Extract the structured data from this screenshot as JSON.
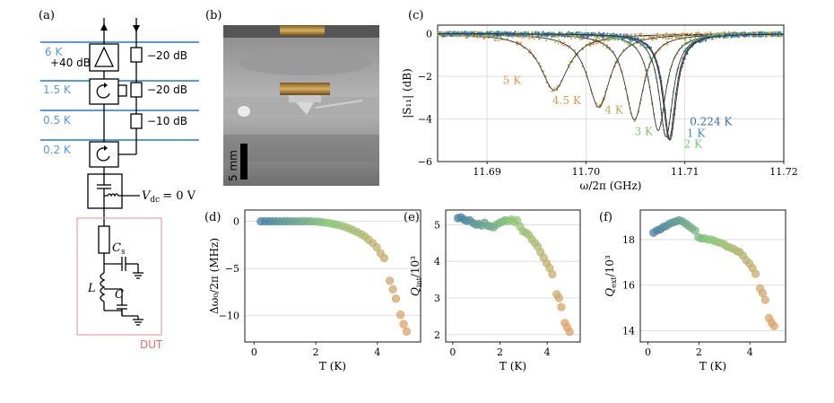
{
  "colors": {
    "blue_line": "#5b9bd5",
    "dut_box": "#e8a0a0",
    "dut_label": "#e07070",
    "gauge_low": "#3f78a8",
    "gauge_mid": "#8cc878",
    "gauge_high": "#e0a26a"
  },
  "panel_a": {
    "label": "(a)",
    "stages": [
      "6 K",
      "1.5 K",
      "0.5 K",
      "0.2 K"
    ],
    "amp_gain": "+40 dB",
    "attenuators": [
      "−20 dB",
      "−20 dB",
      "−10 dB"
    ],
    "vdc_label": "V",
    "vdc_sub": "dc",
    "vdc_value": "= 0 V",
    "cs_label": "C",
    "cs_sub": "s",
    "l_label": "L",
    "c_label": "C",
    "dut_label": "DUT"
  },
  "panel_b": {
    "label": "(b)",
    "scale_bar": "5 mm"
  },
  "chart_data": [
    {
      "id": "c",
      "label": "(c)",
      "type": "scatter",
      "xlabel": "ω/2π (GHz)",
      "ylabel": "|S₁₁| (dB)",
      "xlim": [
        11.685,
        11.72
      ],
      "ylim": [
        -6,
        0.4
      ],
      "xticks": [
        "11.69",
        "11.70",
        "11.71",
        "11.72"
      ],
      "yticks": [
        "0",
        "−2",
        "−4",
        "−6"
      ],
      "series": [
        {
          "name": "5 K",
          "f0": 11.6968,
          "depth": -2.65,
          "width": 0.0034,
          "color": "#d9964f"
        },
        {
          "name": "4.5 K",
          "f0": 11.7013,
          "depth": -3.45,
          "width": 0.0028,
          "color": "#cda055"
        },
        {
          "name": "4 K",
          "f0": 11.7049,
          "depth": -4.05,
          "width": 0.0023,
          "color": "#b9a85c"
        },
        {
          "name": "3 K",
          "f0": 11.7073,
          "depth": -4.55,
          "width": 0.0019,
          "color": "#93bd6a"
        },
        {
          "name": "2 K",
          "f0": 11.7081,
          "depth": -4.85,
          "width": 0.0017,
          "color": "#7fc17f"
        },
        {
          "name": "1 K",
          "f0": 11.7084,
          "depth": -4.95,
          "width": 0.0016,
          "color": "#4d8bb8"
        },
        {
          "name": "0.224 K",
          "f0": 11.7085,
          "depth": -5.0,
          "width": 0.0016,
          "color": "#3a6f9e"
        }
      ]
    },
    {
      "id": "d",
      "label": "(d)",
      "type": "scatter",
      "xlabel": "T (K)",
      "ylabel": "Δω₀/2π (MHz)",
      "xlim": [
        -0.3,
        5.4
      ],
      "ylim": [
        -12.8,
        1.2
      ],
      "xticks": [
        "0",
        "2",
        "4"
      ],
      "yticks": [
        "0",
        "−5",
        "−10"
      ],
      "x": [
        0.22,
        0.35,
        0.48,
        0.6,
        0.72,
        0.85,
        0.98,
        1.1,
        1.22,
        1.35,
        1.48,
        1.6,
        1.72,
        1.85,
        1.98,
        2.1,
        2.22,
        2.35,
        2.48,
        2.6,
        2.72,
        2.85,
        2.98,
        3.1,
        3.22,
        3.35,
        3.48,
        3.6,
        3.72,
        3.85,
        3.98,
        4.1,
        4.22,
        4.4,
        4.5,
        4.6,
        4.75,
        4.85,
        4.95
      ],
      "y": [
        0,
        0,
        0,
        0,
        0,
        0,
        0,
        0,
        0,
        0,
        0,
        0,
        0,
        0,
        -0.02,
        -0.05,
        -0.1,
        -0.15,
        -0.22,
        -0.3,
        -0.38,
        -0.5,
        -0.62,
        -0.78,
        -0.95,
        -1.15,
        -1.38,
        -1.62,
        -1.95,
        -2.3,
        -2.75,
        -3.4,
        -3.9,
        -6.3,
        -7.2,
        -8.2,
        -9.9,
        -10.9,
        -11.7
      ]
    },
    {
      "id": "e",
      "label": "(e)",
      "type": "scatter",
      "xlabel": "T (K)",
      "ylabel": "Q_int/10³",
      "xlim": [
        -0.3,
        5.4
      ],
      "ylim": [
        1.8,
        5.4
      ],
      "xticks": [
        "0",
        "2",
        "4"
      ],
      "yticks": [
        "2",
        "3",
        "4",
        "5"
      ],
      "x": [
        0.22,
        0.35,
        0.48,
        0.6,
        0.72,
        0.85,
        0.98,
        1.1,
        1.22,
        1.35,
        1.48,
        1.6,
        1.72,
        1.85,
        1.98,
        2.1,
        2.22,
        2.35,
        2.48,
        2.6,
        2.72,
        2.85,
        2.98,
        3.1,
        3.22,
        3.35,
        3.48,
        3.6,
        3.72,
        3.85,
        3.98,
        4.1,
        4.22,
        4.4,
        4.5,
        4.6,
        4.75,
        4.85,
        4.95
      ],
      "y": [
        5.18,
        5.2,
        5.14,
        5.1,
        5.12,
        5.05,
        5.0,
        5.02,
        4.98,
        5.05,
        4.97,
        4.96,
        4.93,
        5.0,
        5.05,
        5.08,
        5.12,
        5.1,
        5.14,
        5.08,
        5.12,
        4.95,
        4.82,
        4.78,
        4.72,
        4.6,
        4.5,
        4.4,
        4.25,
        4.1,
        3.95,
        3.82,
        3.65,
        3.1,
        3.0,
        2.75,
        2.32,
        2.2,
        2.08
      ]
    },
    {
      "id": "f",
      "label": "(f)",
      "type": "scatter",
      "xlabel": "T (K)",
      "ylabel": "Q_ext/10³",
      "xlim": [
        -0.3,
        5.4
      ],
      "ylim": [
        13.5,
        19.3
      ],
      "xticks": [
        "0",
        "2",
        "4"
      ],
      "yticks": [
        "14",
        "16",
        "18"
      ],
      "x": [
        0.22,
        0.35,
        0.48,
        0.6,
        0.72,
        0.85,
        0.98,
        1.1,
        1.22,
        1.35,
        1.48,
        1.6,
        1.72,
        1.85,
        1.98,
        2.1,
        2.22,
        2.35,
        2.48,
        2.6,
        2.72,
        2.85,
        2.98,
        3.1,
        3.22,
        3.35,
        3.48,
        3.6,
        3.72,
        3.85,
        3.98,
        4.1,
        4.22,
        4.4,
        4.5,
        4.6,
        4.75,
        4.85,
        4.95
      ],
      "y": [
        18.3,
        18.4,
        18.45,
        18.55,
        18.6,
        18.7,
        18.75,
        18.8,
        18.85,
        18.8,
        18.7,
        18.6,
        18.5,
        18.4,
        18.1,
        18.05,
        18.05,
        18.0,
        18.0,
        17.95,
        17.9,
        17.85,
        17.8,
        17.7,
        17.65,
        17.6,
        17.5,
        17.45,
        17.3,
        17.1,
        16.95,
        16.75,
        16.5,
        15.85,
        15.65,
        15.35,
        14.55,
        14.35,
        14.2
      ]
    }
  ]
}
